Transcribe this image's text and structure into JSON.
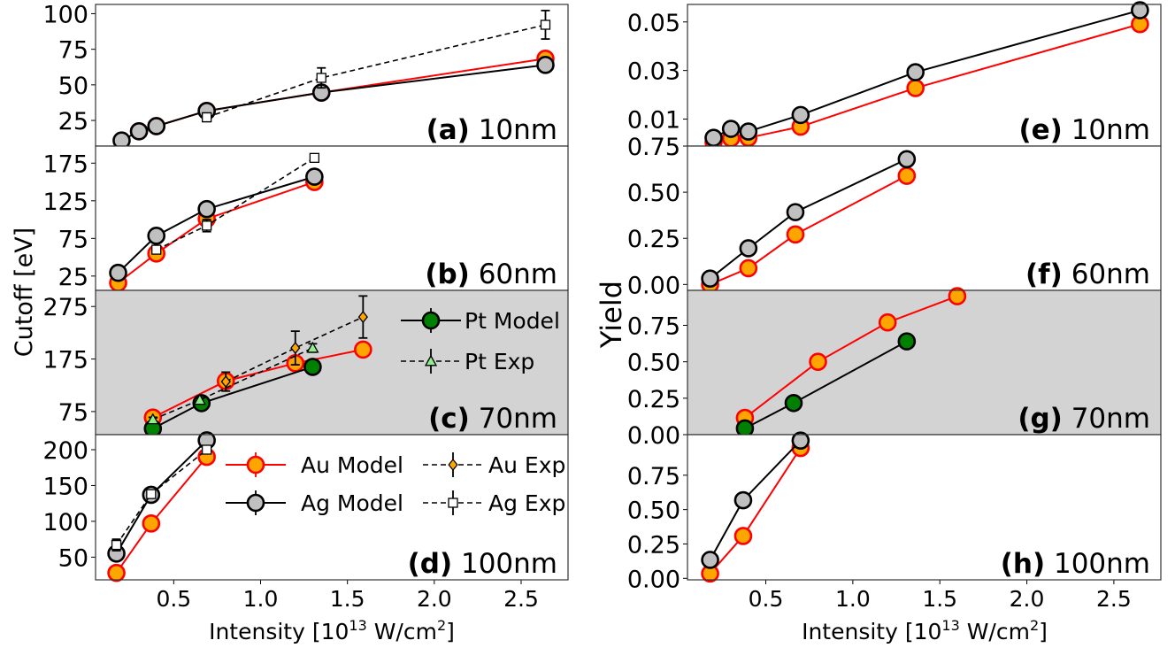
{
  "figure": {
    "x_label_main": "Intensity [10",
    "x_label_sup": "13",
    "x_label_rest": " W/cm",
    "x_label_sup2": "2",
    "x_label_end": "]",
    "left_ylabel": "Cutoff [eV]",
    "right_ylabel": "Yield"
  },
  "styles": {
    "Au Model": {
      "fill": "#ffa500",
      "stroke": "#ff0000",
      "line": "#ff0000",
      "marker": "circle",
      "dash": false
    },
    "Ag Model": {
      "fill": "#c0c0c0",
      "stroke": "#000000",
      "line": "#000000",
      "marker": "circle",
      "dash": false
    },
    "Pt Model": {
      "fill": "#008000",
      "stroke": "#000000",
      "line": "#000000",
      "marker": "circle",
      "dash": false
    },
    "Au Exp": {
      "fill": "#ffa500",
      "stroke": "#000000",
      "line": "#000000",
      "marker": "diamond",
      "dash": true
    },
    "Ag Exp": {
      "fill": "#ffffff",
      "stroke": "#000000",
      "line": "#000000",
      "marker": "square",
      "dash": true
    },
    "Pt Exp": {
      "fill": "#90ee90",
      "stroke": "#000000",
      "line": "#000000",
      "marker": "triangle",
      "dash": true
    },
    "shaded_background": "#d3d3d3"
  },
  "legends": [
    {
      "panel": "c",
      "entries": [
        "Pt Model",
        "Pt Exp"
      ]
    },
    {
      "panel": "d",
      "entries": [
        "Au Model",
        "Au Exp",
        "Ag Model",
        "Ag Exp"
      ]
    }
  ],
  "chart_data": [
    {
      "type": "line",
      "id": "a",
      "label": "(a)",
      "size": "10nm",
      "column": "left",
      "shaded": false,
      "xlim": [
        0.05,
        2.77
      ],
      "xticks": [
        0.5,
        1.0,
        1.5,
        2.0,
        2.5
      ],
      "ylim": [
        7,
        106.5
      ],
      "yticks": [
        25,
        50,
        75,
        100
      ],
      "ytick_labels": [
        "25",
        "50",
        "75",
        "100"
      ],
      "series": [
        {
          "name": "Au Model",
          "x": [
            0.3,
            0.4,
            0.69,
            1.35,
            2.64
          ],
          "y": [
            17.4,
            21,
            31.7,
            44.6,
            68.4
          ]
        },
        {
          "name": "Ag Model",
          "x": [
            0.2,
            0.3,
            0.4,
            0.69,
            1.35,
            2.64
          ],
          "y": [
            10.9,
            17.4,
            21,
            31.7,
            44.6,
            64
          ]
        },
        {
          "name": "Ag Exp",
          "x": [
            0.69,
            1.35,
            2.64
          ],
          "y": [
            27.2,
            54.9,
            92.2
          ],
          "err": [
            3,
            7,
            10
          ]
        }
      ]
    },
    {
      "type": "line",
      "id": "b",
      "label": "(b)",
      "size": "60nm",
      "column": "left",
      "shaded": false,
      "xlim": [
        0.05,
        2.77
      ],
      "xticks": [
        0.5,
        1.0,
        1.5,
        2.0,
        2.5
      ],
      "ylim": [
        6,
        197.7
      ],
      "yticks": [
        25,
        75,
        125,
        175
      ],
      "ytick_labels": [
        "25",
        "75",
        "125",
        "175"
      ],
      "series": [
        {
          "name": "Au Model",
          "x": [
            0.18,
            0.4,
            0.69,
            1.31
          ],
          "y": [
            16,
            55,
            101,
            150
          ]
        },
        {
          "name": "Ag Model",
          "x": [
            0.18,
            0.4,
            0.69,
            1.31
          ],
          "y": [
            29.3,
            78.5,
            114,
            157
          ]
        },
        {
          "name": "Ag Exp",
          "x": [
            0.4,
            0.69,
            1.31
          ],
          "y": [
            60,
            92,
            182
          ],
          "err": [
            3,
            8,
            3
          ]
        }
      ]
    },
    {
      "type": "line",
      "id": "c",
      "label": "(c)",
      "size": "70nm",
      "column": "left",
      "shaded": true,
      "xlim": [
        0.05,
        2.77
      ],
      "xticks": [
        0.5,
        1.0,
        1.5,
        2.0,
        2.5
      ],
      "ylim": [
        31,
        305.7
      ],
      "yticks": [
        75,
        175,
        275
      ],
      "ytick_labels": [
        "75",
        "175",
        "275"
      ],
      "series": [
        {
          "name": "Au Model",
          "x": [
            0.38,
            0.8,
            1.2,
            1.59
          ],
          "y": [
            63.6,
            133,
            167,
            193
          ]
        },
        {
          "name": "Pt Model",
          "x": [
            0.38,
            0.66,
            1.3
          ],
          "y": [
            42.6,
            91,
            160
          ]
        },
        {
          "name": "Au Exp",
          "x": [
            0.8,
            1.2,
            1.59
          ],
          "y": [
            132,
            196,
            255
          ],
          "err": [
            18,
            32,
            40
          ]
        },
        {
          "name": "Pt Exp",
          "x": [
            0.38,
            0.65,
            1.3
          ],
          "y": [
            60,
            97,
            196
          ],
          "err": [
            4,
            4,
            8
          ]
        }
      ]
    },
    {
      "type": "line",
      "id": "d",
      "label": "(d)",
      "size": "100nm",
      "column": "left",
      "shaded": false,
      "xlim": [
        0.05,
        2.77
      ],
      "xticks": [
        0.5,
        1.0,
        1.5,
        2.0,
        2.5
      ],
      "xtick_labels": [
        "0.5",
        "1.0",
        "1.5",
        "2.0",
        "2.5"
      ],
      "ylim": [
        18.3,
        221
      ],
      "yticks": [
        50,
        100,
        150,
        200
      ],
      "ytick_labels": [
        "50",
        "100",
        "150",
        "200"
      ],
      "series": [
        {
          "name": "Au Model",
          "x": [
            0.17,
            0.37,
            0.69
          ],
          "y": [
            28,
            97,
            190
          ]
        },
        {
          "name": "Ag Model",
          "x": [
            0.17,
            0.37,
            0.69
          ],
          "y": [
            55,
            137,
            213
          ]
        },
        {
          "name": "Ag Exp",
          "x": [
            0.17,
            0.37,
            0.69
          ],
          "y": [
            67,
            138,
            200
          ],
          "err": [
            8,
            5,
            4
          ]
        }
      ]
    },
    {
      "type": "line",
      "id": "e",
      "label": "(e)",
      "size": "10nm",
      "column": "right",
      "shaded": false,
      "xlim": [
        0.05,
        2.77
      ],
      "xticks": [
        0.5,
        1.0,
        1.5,
        2.0,
        2.5
      ],
      "ylim": [
        -0.0011,
        0.0572
      ],
      "yticks": [
        0.01,
        0.03,
        0.05
      ],
      "ytick_labels": [
        "0.01",
        "0.03",
        "0.05"
      ],
      "series": [
        {
          "name": "Au Model",
          "x": [
            0.2,
            0.3,
            0.4,
            0.7,
            1.36,
            2.65
          ],
          "y": [
            0.0005,
            0.0021,
            0.0023,
            0.0069,
            0.0228,
            0.0491
          ]
        },
        {
          "name": "Ag Model",
          "x": [
            0.2,
            0.3,
            0.4,
            0.7,
            1.36,
            2.65
          ],
          "y": [
            0.0023,
            0.006,
            0.0049,
            0.0117,
            0.0293,
            0.0548
          ]
        }
      ]
    },
    {
      "type": "line",
      "id": "f",
      "label": "(f)",
      "size": "60nm",
      "column": "right",
      "shaded": false,
      "xlim": [
        0.05,
        2.77
      ],
      "xticks": [
        0.5,
        1.0,
        1.5,
        2.0,
        2.5
      ],
      "ylim": [
        -0.032,
        0.75
      ],
      "yticks": [
        0.0,
        0.25,
        0.5,
        0.75
      ],
      "ytick_labels": [
        "0.00",
        "0.25",
        "0.50",
        "0.75"
      ],
      "series": [
        {
          "name": "Au Model",
          "x": [
            0.18,
            0.4,
            0.67,
            1.31
          ],
          "y": [
            0.0,
            0.088,
            0.271,
            0.589
          ]
        },
        {
          "name": "Ag Model",
          "x": [
            0.18,
            0.4,
            0.67,
            1.31
          ],
          "y": [
            0.032,
            0.196,
            0.392,
            0.679
          ]
        }
      ]
    },
    {
      "type": "line",
      "id": "g",
      "label": "(g)",
      "size": "70nm",
      "column": "right",
      "shaded": true,
      "xlim": [
        0.05,
        2.77
      ],
      "xticks": [
        0.5,
        1.0,
        1.5,
        2.0,
        2.5
      ],
      "ylim": [
        0.0,
        0.99
      ],
      "yticks": [
        0.0,
        0.25,
        0.5,
        0.75
      ],
      "ytick_labels": [
        "0.00",
        "0.25",
        "0.50",
        "0.75"
      ],
      "series": [
        {
          "name": "Au Model",
          "x": [
            0.38,
            0.8,
            1.2,
            1.6
          ],
          "y": [
            0.115,
            0.5,
            0.77,
            0.95
          ]
        },
        {
          "name": "Pt Model",
          "x": [
            0.38,
            0.66,
            1.31
          ],
          "y": [
            0.043,
            0.217,
            0.64
          ]
        }
      ]
    },
    {
      "type": "line",
      "id": "h",
      "label": "(h)",
      "size": "100nm",
      "column": "right",
      "shaded": false,
      "xlim": [
        0.05,
        2.77
      ],
      "xticks": [
        0.5,
        1.0,
        1.5,
        2.0,
        2.5
      ],
      "xtick_labels": [
        "0.5",
        "1.0",
        "1.5",
        "2.0",
        "2.5"
      ],
      "ylim": [
        -0.011,
        1.045
      ],
      "yticks": [
        0.0,
        0.25,
        0.5,
        0.75
      ],
      "ytick_labels": [
        "0.00",
        "0.25",
        "0.50",
        "0.75"
      ],
      "series": [
        {
          "name": "Au Model",
          "x": [
            0.18,
            0.37,
            0.7
          ],
          "y": [
            0.035,
            0.308,
            0.948
          ]
        },
        {
          "name": "Ag Model",
          "x": [
            0.18,
            0.37,
            0.7
          ],
          "y": [
            0.134,
            0.568,
            1.002
          ]
        }
      ]
    }
  ]
}
